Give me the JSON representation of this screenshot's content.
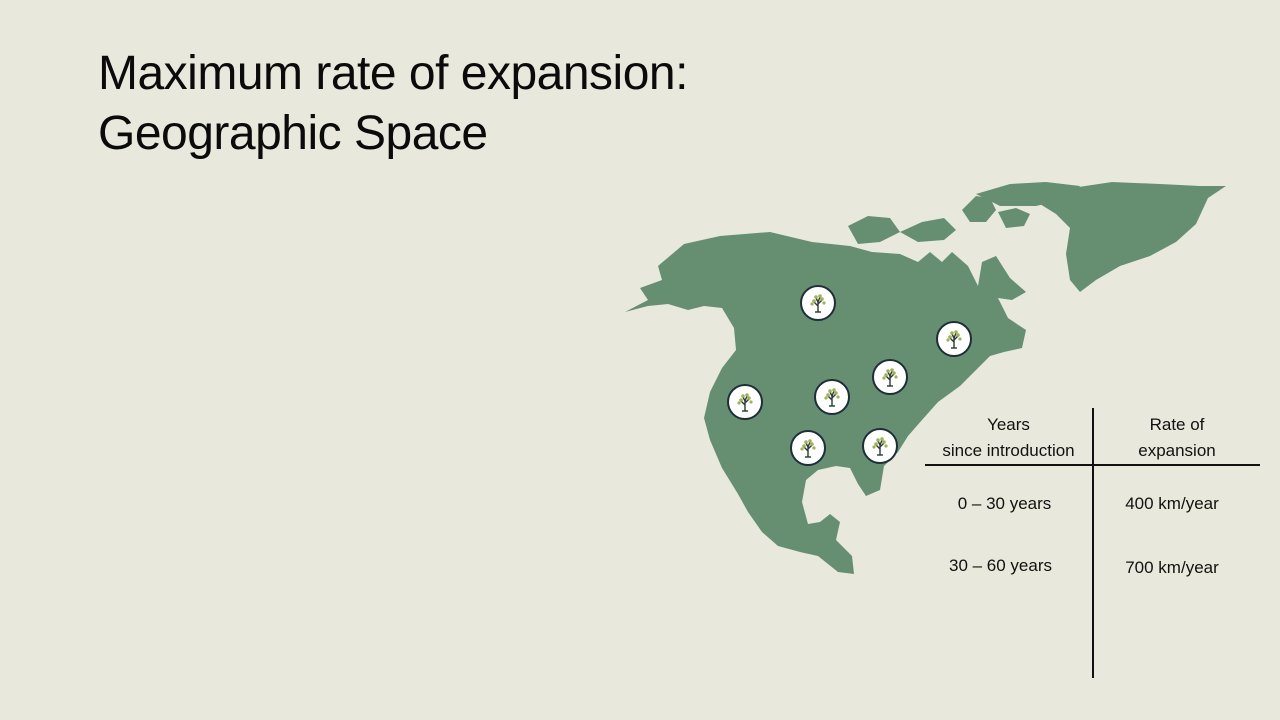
{
  "title": {
    "line1": "Maximum rate of expansion:",
    "line2": "Geographic Space"
  },
  "map": {
    "fill_color": "#668f72",
    "marker_icon": "tree-icon",
    "marker_count": 7
  },
  "table": {
    "headers": [
      {
        "line1": "Years",
        "line2": "since introduction"
      },
      {
        "line1": "Rate of",
        "line2": "expansion"
      }
    ],
    "rows": [
      {
        "years": "0 – 30 years",
        "rate": "400 km/year"
      },
      {
        "years": "30 – 60 years",
        "rate": "700 km/year"
      }
    ]
  }
}
